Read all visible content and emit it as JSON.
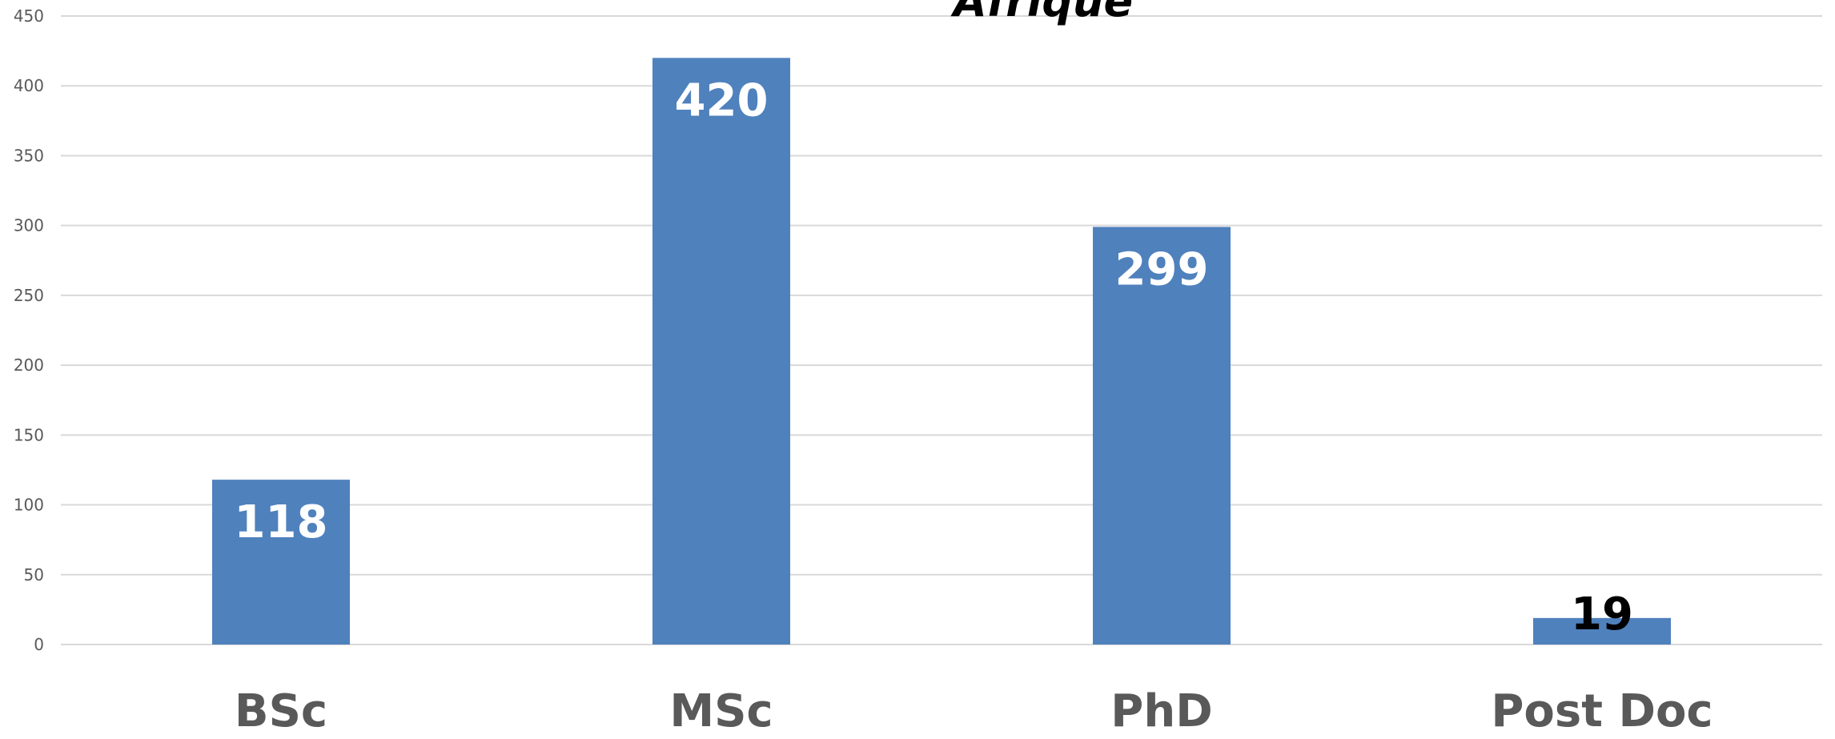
{
  "chart_data": {
    "type": "bar",
    "title": "Afrique",
    "categories": [
      "BSc",
      "MSc",
      "PhD",
      "Post Doc"
    ],
    "values": [
      118,
      420,
      299,
      19
    ],
    "data_labels": [
      "118",
      "420",
      "299",
      "19"
    ],
    "ylim": [
      0,
      450
    ],
    "yticks": [
      0,
      50,
      100,
      150,
      200,
      250,
      300,
      350,
      400,
      450
    ],
    "grid": true,
    "legend": "none",
    "bar_color": "#4f81bd",
    "label_color_inside": "#ffffff",
    "label_color_outside": "#000000"
  }
}
